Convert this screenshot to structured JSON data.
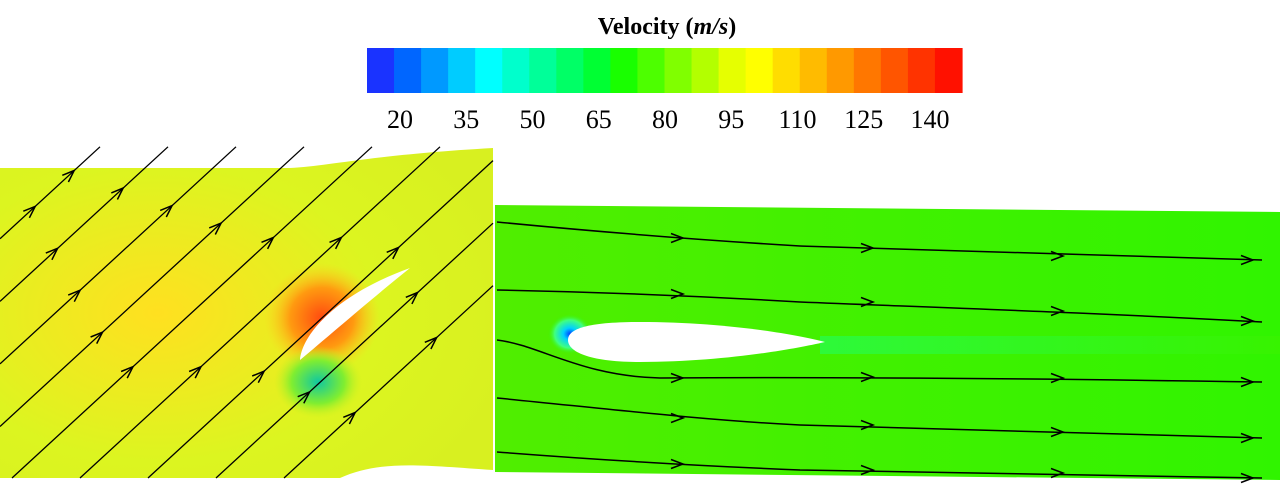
{
  "legend": {
    "title_text": "Velocity (",
    "title_unit": "m/s",
    "title_close": ")",
    "ticks": [
      "20",
      "35",
      "50",
      "65",
      "80",
      "95",
      "110",
      "125",
      "140"
    ],
    "colors": [
      "#1a33ff",
      "#0066ff",
      "#0099ff",
      "#00ccff",
      "#00ffff",
      "#00ffcc",
      "#00ff99",
      "#00ff66",
      "#00ff33",
      "#19ff00",
      "#4dff00",
      "#80ff00",
      "#b3ff00",
      "#e6ff00",
      "#ffff00",
      "#ffdd00",
      "#ffbb00",
      "#ff9900",
      "#ff7700",
      "#ff5500",
      "#ff3300",
      "#ff1100"
    ]
  },
  "panels": {
    "left": {
      "name": "cascade-blade-panel",
      "field_color": "#dcf520",
      "high_color": "#ff5a10",
      "mid_color": "#b5f020"
    },
    "right": {
      "name": "airfoil-panel",
      "field_color": "#3cf200",
      "low_color": "#00c8ff"
    }
  }
}
